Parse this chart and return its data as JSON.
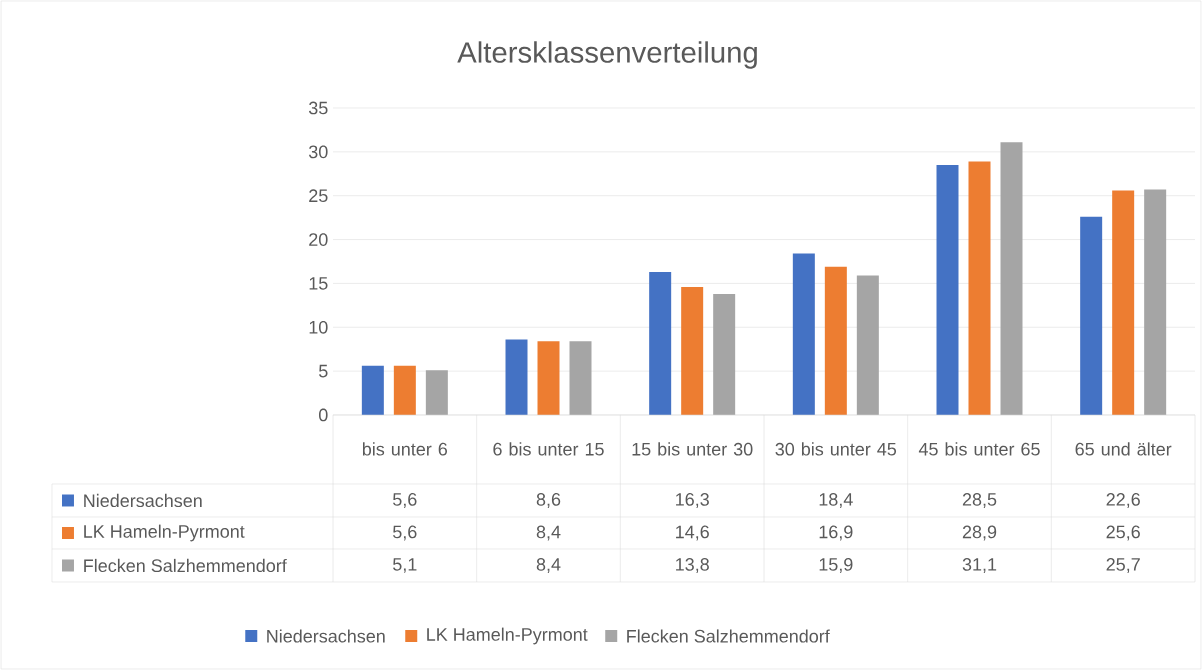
{
  "chart_data": {
    "type": "bar",
    "title": "Altersklassenverteilung",
    "categories": [
      "bis unter 6",
      "6 bis unter 15",
      "15 bis unter 30",
      "30 bis unter 45",
      "45 bis unter 65",
      "65 und älter"
    ],
    "series": [
      {
        "name": "Niedersachsen",
        "color": "#4472c4",
        "values": [
          5.6,
          8.6,
          16.3,
          18.4,
          28.5,
          22.6
        ],
        "value_labels": [
          "5,6",
          "8,6",
          "16,3",
          "18,4",
          "28,5",
          "22,6"
        ]
      },
      {
        "name": "LK Hameln-Pyrmont",
        "color": "#ed7d31",
        "values": [
          5.6,
          8.4,
          14.6,
          16.9,
          28.9,
          25.6
        ],
        "value_labels": [
          "5,6",
          "8,4",
          "14,6",
          "16,9",
          "28,9",
          "25,6"
        ]
      },
      {
        "name": "Flecken Salzhemmendorf",
        "color": "#a5a5a5",
        "values": [
          5.1,
          8.4,
          13.8,
          15.9,
          31.1,
          25.7
        ],
        "value_labels": [
          "5,1",
          "8,4",
          "13,8",
          "15,9",
          "31,1",
          "25,7"
        ]
      }
    ],
    "ylim": [
      0,
      35
    ],
    "yticks": [
      0,
      5,
      10,
      15,
      20,
      25,
      30,
      35
    ],
    "grid": "y",
    "legend": "bottom"
  }
}
